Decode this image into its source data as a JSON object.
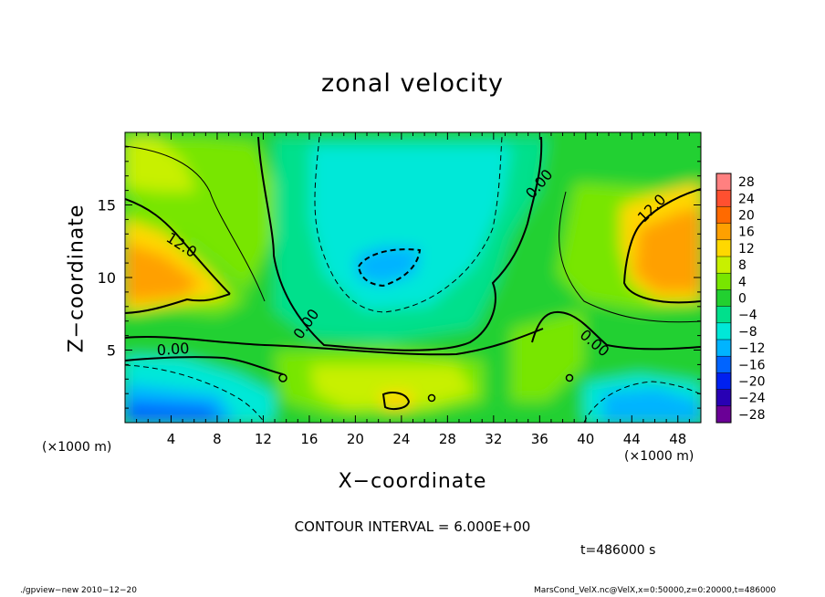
{
  "chart_data": {
    "type": "heatmap",
    "title": "zonal velocity",
    "xlabel": "X−coordinate",
    "ylabel": "Z−coordinate",
    "x_unit_label": "(×1000 m)",
    "y_unit_label": "(×1000 m)",
    "xlim": [
      0,
      50
    ],
    "ylim": [
      0,
      20
    ],
    "x_ticks": [
      4,
      8,
      12,
      16,
      20,
      24,
      28,
      32,
      36,
      40,
      44,
      48
    ],
    "y_ticks": [
      5,
      10,
      15
    ],
    "colorbar": {
      "levels": [
        "28",
        "24",
        "20",
        "16",
        "12",
        "8",
        "4",
        "0",
        "−4",
        "−8",
        "−12",
        "−16",
        "−20",
        "−24",
        "−28"
      ],
      "colors": [
        "#ff8080",
        "#ff5030",
        "#ff6a00",
        "#ffa000",
        "#ffd800",
        "#c8f000",
        "#78e600",
        "#22d030",
        "#00e08c",
        "#00e8d8",
        "#00b4ff",
        "#0064ff",
        "#0020f0",
        "#2800b4",
        "#6a0096"
      ]
    },
    "contour_labels": [
      "12.0",
      "12.0",
      "0.00",
      "0.00",
      "0.00",
      "0.00"
    ],
    "contour_interval": "CONTOUR INTERVAL = 6.000E+00",
    "time": "t=486000 s"
  },
  "footer": {
    "left": "./gpview−new  2010−12−20",
    "right": "MarsCond_VelX.nc@VelX,x=0:50000,z=0:20000,t=486000"
  }
}
